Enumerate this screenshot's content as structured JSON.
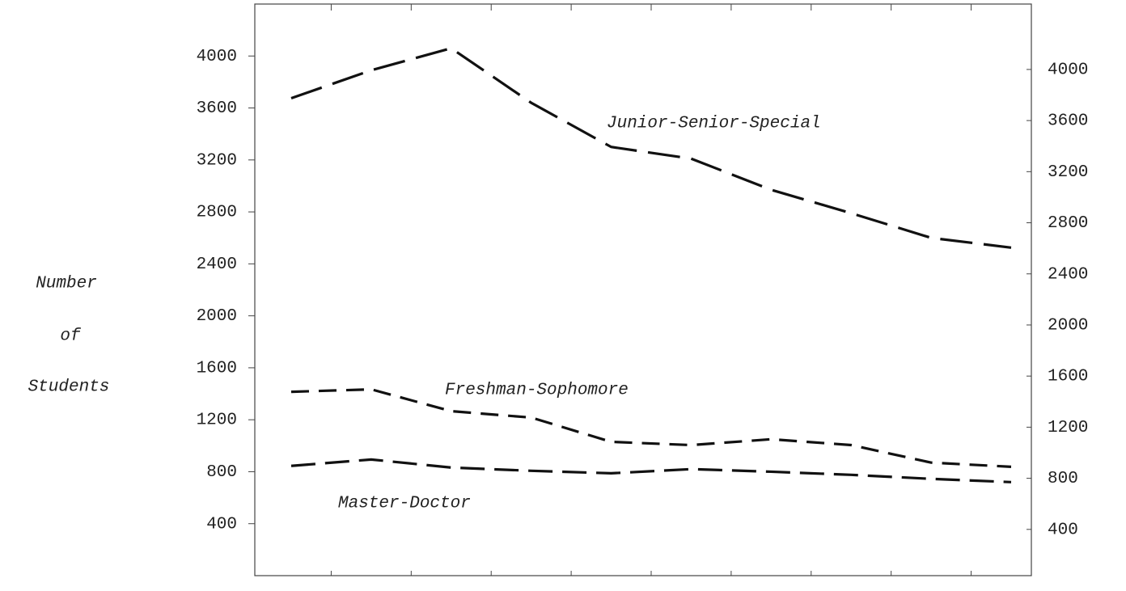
{
  "chart_data": {
    "type": "line",
    "ylabel": [
      "Number",
      "of",
      "Students"
    ],
    "categories": [
      null,
      null,
      null,
      null,
      null,
      null,
      null,
      null,
      null,
      null
    ],
    "series": [
      {
        "name": "Junior-Senior-Special",
        "color": "#111111",
        "values": [
          3675,
          3890,
          4060,
          3640,
          3300,
          3210,
          2970,
          2790,
          2600,
          2525
        ]
      },
      {
        "name": "Freshman-Sophomore",
        "color": "#111111",
        "values": [
          1415,
          1434,
          1266,
          1217,
          1030,
          1005,
          1050,
          1005,
          870,
          838
        ]
      },
      {
        "name": "Master-Doctor",
        "color": "#111111",
        "values": [
          845,
          894,
          832,
          807,
          788,
          820,
          800,
          776,
          745,
          720
        ]
      }
    ],
    "ylim": [
      0,
      4400
    ],
    "yticks": [
      400,
      800,
      1200,
      1600,
      2000,
      2400,
      2800,
      3200,
      3600,
      4000
    ],
    "y2lim": [
      38,
      4512
    ],
    "y2ticks": [
      400,
      800,
      1200,
      1600,
      2000,
      2400,
      2800,
      3200,
      3600,
      4000
    ],
    "grid": false
  }
}
